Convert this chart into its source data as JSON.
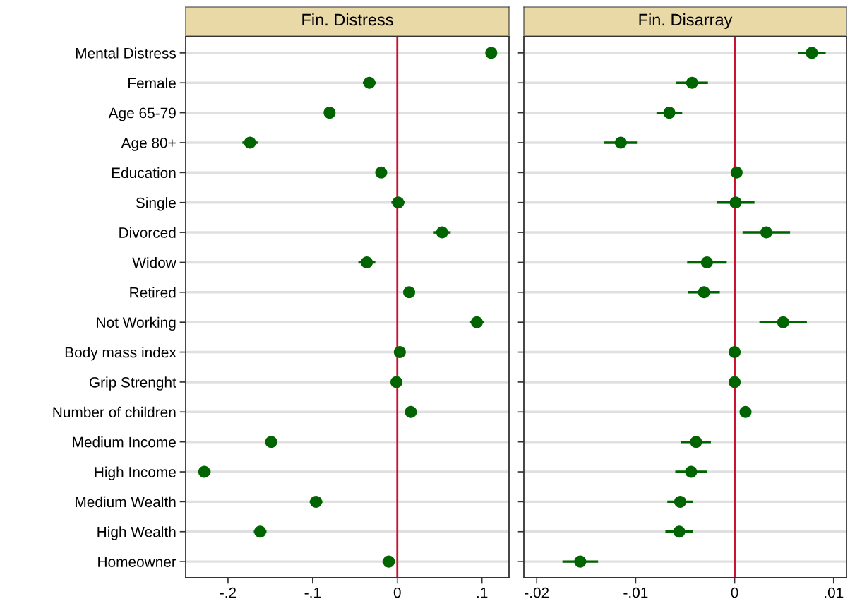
{
  "chart_data": [
    {
      "type": "scatter",
      "orientation": "horizontal",
      "title": "Fin. Distress",
      "categories": [
        "Mental Distress",
        "Female",
        "Age 65-79",
        "Age 80+",
        "Education",
        "Single",
        "Divorced",
        "Widow",
        "Retired",
        "Not Working",
        "Body mass index",
        "Grip Strenght",
        "Number of children",
        "Medium Income",
        "High Income",
        "Medium Wealth",
        "High Wealth",
        "Homeowner"
      ],
      "values": [
        0.111,
        -0.033,
        -0.08,
        -0.174,
        -0.019,
        0.001,
        0.053,
        -0.036,
        0.014,
        0.094,
        0.003,
        -0.001,
        0.016,
        -0.149,
        -0.228,
        -0.096,
        -0.162,
        -0.01
      ],
      "errors": [
        null,
        0.0077,
        null,
        0.009,
        null,
        0.008,
        0.01,
        0.01,
        0.006,
        0.008,
        null,
        null,
        null,
        null,
        0.0075,
        0.0075,
        0.0075,
        0.0075
      ],
      "color": "#006400",
      "marker": "circle",
      "xlim": [
        -0.25,
        0.132
      ],
      "xticks": [
        {
          "value": -0.2,
          "label": "-.2"
        },
        {
          "value": -0.1,
          "label": "-.1"
        },
        0,
        {
          "value": 0.1,
          "label": ".1"
        }
      ],
      "grid": "y",
      "ref_lines": [
        {
          "axis": "x",
          "value": 0,
          "color": "#c8102e"
        }
      ]
    },
    {
      "type": "scatter",
      "orientation": "horizontal",
      "title": "Fin. Disarray",
      "categories": [
        null,
        null,
        null,
        null,
        null,
        null,
        null,
        null,
        null,
        null,
        null,
        null,
        null,
        null,
        null,
        null,
        null,
        null
      ],
      "values": [
        0.0078,
        -0.0043,
        -0.0066,
        -0.0115,
        0.0002,
        0.0001,
        0.0032,
        -0.0028,
        -0.0031,
        0.0049,
        0,
        0,
        0.0011,
        -0.0039,
        -0.0044,
        -0.0055,
        -0.0056,
        -0.0156
      ],
      "errors": [
        0.0014,
        0.0016,
        0.0013,
        0.0017,
        null,
        0.0019,
        0.0024,
        0.002,
        0.0016,
        0.0024,
        null,
        null,
        null,
        0.0015,
        0.0016,
        0.0013,
        0.0014,
        0.0018
      ],
      "color": "#006400",
      "marker": "circle",
      "xlim": [
        -0.0213,
        0.0113
      ],
      "xticks": [
        {
          "value": -0.02,
          "label": "-.02"
        },
        {
          "value": -0.01,
          "label": "-.01"
        },
        0,
        {
          "value": 0.01,
          "label": ".01"
        }
      ],
      "grid": "y",
      "tick_labels": "x",
      "ref_lines": [
        {
          "axis": "x",
          "value": 0,
          "color": "#c8102e"
        }
      ]
    }
  ]
}
